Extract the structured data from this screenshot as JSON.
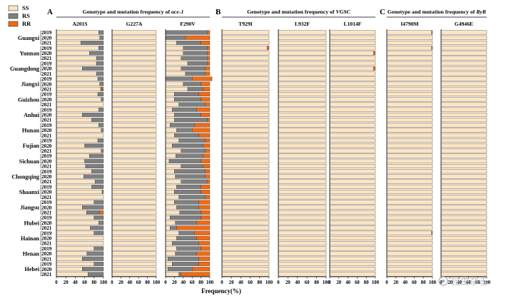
{
  "legend": {
    "items": [
      {
        "label": "SS",
        "color": "#FCE4C4"
      },
      {
        "label": "RS",
        "color": "#7F7F7F"
      },
      {
        "label": "RR",
        "color": "#F06A14"
      }
    ]
  },
  "watermark": "昆虫杂志",
  "chart_data": {
    "type": "bar",
    "orientation": "horizontal",
    "stacked": true,
    "xlabel": "Frequency(%)",
    "xticks": [
      "0",
      "20",
      "40",
      "60",
      "80",
      "100"
    ],
    "xlim": [
      0,
      100
    ],
    "rows": [
      {
        "province": "Guangxi",
        "year": "2019"
      },
      {
        "province": "Guangxi",
        "year": "2020"
      },
      {
        "province": "Guangxi",
        "year": "2021"
      },
      {
        "province": "Yunnan",
        "year": "2019"
      },
      {
        "province": "Yunnan",
        "year": "2020"
      },
      {
        "province": "Yunnan",
        "year": "2021"
      },
      {
        "province": "Guangdong",
        "year": "2019"
      },
      {
        "province": "Guangdong",
        "year": "2020"
      },
      {
        "province": "Guangdong",
        "year": "2021"
      },
      {
        "province": "Jiangxi",
        "year": "2019"
      },
      {
        "province": "Jiangxi",
        "year": "2020"
      },
      {
        "province": "Jiangxi",
        "year": "2021"
      },
      {
        "province": "Guizhou",
        "year": "2019"
      },
      {
        "province": "Guizhou",
        "year": "2020"
      },
      {
        "province": "Guizhou",
        "year": "2021"
      },
      {
        "province": "Anhui",
        "year": "2019"
      },
      {
        "province": "Anhui",
        "year": "2020"
      },
      {
        "province": "Anhui",
        "year": "2021"
      },
      {
        "province": "Hunan",
        "year": "2019"
      },
      {
        "province": "Hunan",
        "year": "2020"
      },
      {
        "province": "Hunan",
        "year": "2021"
      },
      {
        "province": "Fujian",
        "year": "2019"
      },
      {
        "province": "Fujian",
        "year": "2020"
      },
      {
        "province": "Fujian",
        "year": "2021"
      },
      {
        "province": "Sichuan",
        "year": "2019"
      },
      {
        "province": "Sichuan",
        "year": "2020"
      },
      {
        "province": "Sichuan",
        "year": "2021"
      },
      {
        "province": "Chongqing",
        "year": "2019"
      },
      {
        "province": "Chongqing",
        "year": "2020"
      },
      {
        "province": "Chongqing",
        "year": "2021"
      },
      {
        "province": "Shaanxi",
        "year": "2019"
      },
      {
        "province": "Shaanxi",
        "year": "2020"
      },
      {
        "province": "Shaanxi",
        "year": "2021"
      },
      {
        "province": "Jiangsu",
        "year": "2019"
      },
      {
        "province": "Jiangsu",
        "year": "2020"
      },
      {
        "province": "Jiangsu",
        "year": "2021"
      },
      {
        "province": "Hubei",
        "year": "2019"
      },
      {
        "province": "Hubei",
        "year": "2020"
      },
      {
        "province": "Hubei",
        "year": "2021"
      },
      {
        "province": "Hainan",
        "year": "2019"
      },
      {
        "province": "Hainan",
        "year": "2020"
      },
      {
        "province": "Hainan",
        "year": "2021"
      },
      {
        "province": "Henan",
        "year": "2019"
      },
      {
        "province": "Henan",
        "year": "2020"
      },
      {
        "province": "Henan",
        "year": "2021"
      },
      {
        "province": "Hebei",
        "year": "2019"
      },
      {
        "province": "Hebei",
        "year": "2020"
      },
      {
        "province": "Hebei",
        "year": "2021"
      }
    ],
    "panels": [
      {
        "letter": "A",
        "title_prefix": "Genotype and mutation frequency of ",
        "title_gene": "ace-1",
        "subplots": [
          {
            "mutation": "A201S",
            "RS": [
              10,
              8,
              48,
              10,
              30,
              15,
              15,
              45,
              15,
              12,
              8,
              3,
              12,
              5,
              0,
              10,
              45,
              25,
              10,
              5,
              0,
              12,
              40,
              5,
              30,
              40,
              38,
              25,
              42,
              18,
              25,
              3,
              0,
              20,
              45,
              28,
              20,
              10,
              28,
              20,
              0,
              0,
              20,
              35,
              45,
              20,
              45,
              33
            ],
            "RR": [
              0,
              0,
              0,
              0,
              0,
              0,
              0,
              0,
              0,
              0,
              0,
              3,
              0,
              0,
              0,
              0,
              0,
              0,
              0,
              0,
              0,
              0,
              0,
              0,
              0,
              0,
              0,
              0,
              0,
              0,
              0,
              0,
              0,
              0,
              0,
              8,
              0,
              0,
              0,
              0,
              0,
              0,
              0,
              0,
              0,
              0,
              0,
              0
            ]
          },
          {
            "mutation": "G227A",
            "RS": [
              0,
              0,
              0,
              0,
              0,
              0,
              0,
              0,
              0,
              0,
              0,
              0,
              0,
              0,
              0,
              0,
              0,
              0,
              0,
              0,
              0,
              0,
              0,
              0,
              0,
              0,
              0,
              0,
              0,
              0,
              0,
              0,
              0,
              0,
              0,
              0,
              0,
              0,
              0,
              0,
              0,
              0,
              0,
              0,
              0,
              0,
              0,
              0
            ],
            "RR": [
              0,
              0,
              0,
              0,
              0,
              0,
              0,
              0,
              0,
              0,
              0,
              0,
              0,
              0,
              0,
              0,
              0,
              0,
              0,
              0,
              0,
              0,
              0,
              0,
              0,
              0,
              0,
              0,
              0,
              0,
              0,
              0,
              0,
              0,
              0,
              0,
              0,
              0,
              0,
              0,
              0,
              0,
              0,
              0,
              0,
              0,
              0,
              0
            ]
          },
          {
            "mutation": "F290V",
            "RS": [
              95,
              45,
              55,
              55,
              55,
              60,
              45,
              55,
              45,
              60,
              40,
              35,
              55,
              60,
              60,
              55,
              60,
              75,
              55,
              35,
              55,
              60,
              70,
              55,
              62,
              72,
              50,
              70,
              68,
              60,
              55,
              60,
              60,
              55,
              50,
              48,
              70,
              48,
              15,
              35,
              45,
              60,
              55,
              48,
              70,
              60,
              55,
              5
            ],
            "RR": [
              5,
              55,
              20,
              5,
              5,
              5,
              5,
              10,
              10,
              45,
              20,
              15,
              25,
              20,
              10,
              30,
              20,
              5,
              35,
              40,
              25,
              10,
              15,
              10,
              15,
              20,
              15,
              10,
              10,
              5,
              20,
              20,
              10,
              25,
              25,
              20,
              20,
              30,
              75,
              35,
              30,
              25,
              20,
              30,
              25,
              25,
              40,
              65
            ]
          }
        ]
      },
      {
        "letter": "B",
        "title_prefix": "Genotype and mutation frequency of ",
        "title_gene": "VGSC",
        "subplots": [
          {
            "mutation": "T929I",
            "RS": [
              0,
              0,
              0,
              0,
              0,
              0,
              0,
              0,
              0,
              0,
              0,
              0,
              0,
              0,
              0,
              0,
              0,
              0,
              0,
              0,
              0,
              0,
              0,
              0,
              0,
              0,
              0,
              0,
              0,
              0,
              0,
              0,
              0,
              0,
              0,
              0,
              0,
              0,
              0,
              0,
              0,
              0,
              0,
              0,
              0,
              0,
              0,
              0
            ],
            "RR": [
              0,
              0,
              0,
              4,
              0,
              0,
              0,
              0,
              0,
              0,
              0,
              0,
              0,
              0,
              0,
              0,
              0,
              0,
              0,
              0,
              0,
              0,
              0,
              0,
              0,
              0,
              0,
              0,
              0,
              0,
              0,
              0,
              0,
              0,
              0,
              0,
              0,
              0,
              0,
              0,
              0,
              0,
              0,
              0,
              0,
              0,
              0,
              0
            ]
          },
          {
            "mutation": "L932F",
            "RS": [
              0,
              0,
              0,
              0,
              0,
              0,
              0,
              0,
              0,
              0,
              0,
              0,
              0,
              0,
              0,
              0,
              0,
              0,
              0,
              0,
              0,
              0,
              0,
              0,
              0,
              0,
              0,
              0,
              0,
              0,
              0,
              0,
              0,
              0,
              0,
              0,
              0,
              0,
              0,
              0,
              0,
              0,
              0,
              0,
              0,
              0,
              0,
              0
            ],
            "RR": [
              0,
              0,
              0,
              0,
              0,
              0,
              0,
              0,
              0,
              0,
              0,
              0,
              0,
              0,
              0,
              0,
              0,
              0,
              0,
              0,
              0,
              0,
              0,
              0,
              0,
              0,
              0,
              0,
              0,
              0,
              0,
              0,
              0,
              0,
              0,
              0,
              0,
              0,
              0,
              0,
              0,
              0,
              0,
              0,
              0,
              0,
              0,
              0
            ]
          },
          {
            "mutation": "L1014F",
            "RS": [
              0,
              0,
              0,
              0,
              0,
              0,
              0,
              0,
              0,
              0,
              0,
              0,
              0,
              0,
              0,
              0,
              0,
              0,
              0,
              0,
              0,
              0,
              0,
              0,
              0,
              0,
              0,
              0,
              0,
              0,
              0,
              0,
              0,
              0,
              0,
              0,
              0,
              0,
              0,
              0,
              0,
              0,
              0,
              0,
              0,
              0,
              0,
              0
            ],
            "RR": [
              0,
              0,
              0,
              0,
              4,
              0,
              0,
              4,
              0,
              0,
              0,
              0,
              0,
              0,
              0,
              0,
              0,
              0,
              0,
              0,
              0,
              0,
              0,
              0,
              0,
              0,
              0,
              0,
              0,
              0,
              0,
              0,
              0,
              0,
              0,
              0,
              0,
              0,
              0,
              0,
              0,
              0,
              0,
              0,
              0,
              0,
              0,
              0
            ]
          }
        ]
      },
      {
        "letter": "C",
        "title_prefix": "Genotype and mutation frequency of ",
        "title_gene": "RyR",
        "subplots": [
          {
            "mutation": "I4790M",
            "RS": [
              2,
              0,
              0,
              2,
              0,
              0,
              0,
              0,
              0,
              0,
              0,
              0,
              0,
              0,
              0,
              0,
              0,
              0,
              0,
              0,
              0,
              0,
              0,
              0,
              0,
              0,
              0,
              0,
              0,
              0,
              0,
              0,
              0,
              0,
              0,
              0,
              0,
              0,
              0,
              2,
              0,
              0,
              0,
              0,
              0,
              0,
              0,
              0
            ],
            "RR": [
              0,
              0,
              0,
              0,
              0,
              0,
              0,
              0,
              0,
              0,
              0,
              0,
              0,
              0,
              0,
              0,
              0,
              0,
              0,
              0,
              0,
              0,
              0,
              0,
              0,
              0,
              0,
              0,
              0,
              0,
              0,
              0,
              0,
              0,
              0,
              0,
              0,
              0,
              0,
              0,
              0,
              0,
              0,
              0,
              0,
              0,
              0,
              0
            ]
          },
          {
            "mutation": "G4946E",
            "RS": [
              0,
              0,
              0,
              0,
              0,
              0,
              0,
              0,
              0,
              0,
              0,
              0,
              0,
              0,
              0,
              0,
              0,
              0,
              0,
              0,
              0,
              0,
              0,
              0,
              0,
              0,
              0,
              0,
              0,
              0,
              0,
              0,
              0,
              0,
              0,
              0,
              0,
              0,
              0,
              0,
              0,
              0,
              0,
              0,
              0,
              0,
              0,
              0
            ],
            "RR": [
              0,
              0,
              0,
              0,
              0,
              0,
              0,
              0,
              0,
              0,
              0,
              0,
              0,
              0,
              0,
              0,
              0,
              0,
              0,
              0,
              0,
              0,
              0,
              0,
              0,
              0,
              0,
              0,
              0,
              0,
              0,
              0,
              0,
              0,
              0,
              0,
              0,
              0,
              0,
              0,
              0,
              0,
              0,
              0,
              0,
              0,
              0,
              0
            ]
          }
        ]
      }
    ]
  }
}
